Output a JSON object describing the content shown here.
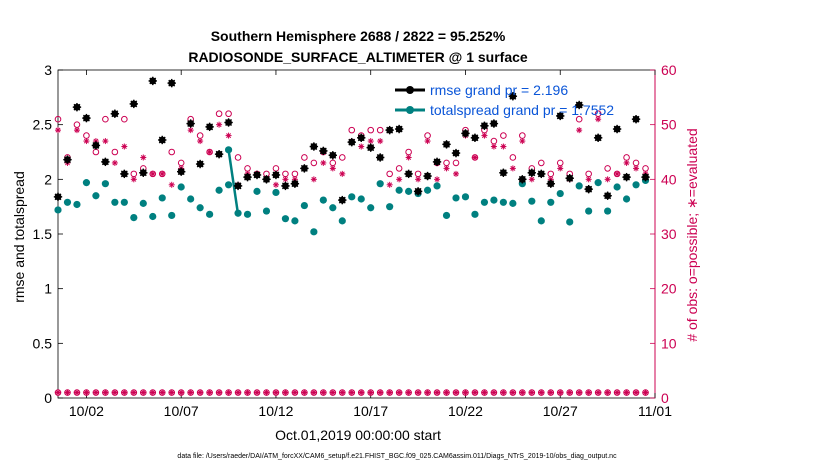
{
  "chart_data": {
    "type": "scatter",
    "title_line1": "Southern Hemisphere 2688 / 2822 = 95.252%",
    "title_line2": "RADIOSONDE_SURFACE_ALTIMETER @ 1 surface",
    "xlabel": "Oct.01,2019 00:00:00 start",
    "ylabel_left": "rmse and totalspread",
    "ylabel_right": "# of obs: o=possible; ∗=evaluated",
    "footer": "data file: /Users/raeder/DAI/ATM_forcXX/CAM6_setup/f.e21.FHIST_BGC.f09_025.CAM6assim.011/Diags_NTrS_2019-10/obs_diag_output.nc",
    "xlim": [
      0.5,
      32
    ],
    "ylim_left": [
      0,
      3
    ],
    "ylim_right": [
      0,
      60
    ],
    "x_ticks": [
      {
        "x": 2,
        "label": "10/02"
      },
      {
        "x": 7,
        "label": "10/07"
      },
      {
        "x": 12,
        "label": "10/12"
      },
      {
        "x": 17,
        "label": "10/17"
      },
      {
        "x": 22,
        "label": "10/22"
      },
      {
        "x": 27,
        "label": "10/27"
      },
      {
        "x": 32,
        "label": "11/01"
      }
    ],
    "y_ticks_left": [
      "0",
      "0.5",
      "1",
      "1.5",
      "2",
      "2.5",
      "3"
    ],
    "y_ticks_right": [
      "0",
      "10",
      "20",
      "30",
      "40",
      "50",
      "60"
    ],
    "colors": {
      "rmse": "#000000",
      "spread": "#008080",
      "counts": "#cc0052",
      "legend_text": "#0a55d8"
    },
    "legend": [
      {
        "key": "rmse",
        "label": "rmse grand pr = 2.196"
      },
      {
        "key": "spread",
        "label": "totalspread grand pr = 1.7552"
      }
    ],
    "series": [
      {
        "name": "rmse",
        "x": [
          0.5,
          1,
          1.5,
          2,
          2.5,
          3,
          3.5,
          4,
          4.5,
          5,
          5.5,
          6,
          6.5,
          7,
          7.5,
          8,
          8.5,
          9,
          9.5,
          10,
          10.5,
          11,
          11.5,
          12,
          12.5,
          13,
          13.5,
          14,
          14.5,
          15,
          15.5,
          16,
          16.5,
          17,
          17.5,
          18,
          18.5,
          19,
          19.5,
          20,
          20.5,
          21,
          21.5,
          22,
          22.5,
          23,
          23.5,
          24,
          24.5,
          25,
          25.5,
          26,
          26.5,
          27,
          27.5,
          28,
          28.5,
          29,
          29.5,
          30,
          30.5,
          31,
          31.5
        ],
        "y": [
          1.84,
          2.18,
          2.66,
          2.56,
          2.31,
          2.16,
          2.6,
          2.05,
          2.69,
          2.06,
          2.9,
          2.36,
          2.88,
          2.07,
          2.51,
          2.14,
          2.48,
          2.23,
          2.52,
          1.94,
          2.02,
          2.04,
          2.0,
          2.04,
          1.94,
          1.96,
          2.1,
          2.3,
          2.26,
          2.22,
          1.81,
          2.34,
          2.38,
          2.29,
          2.2,
          2.45,
          2.46,
          2.05,
          1.89,
          2.03,
          2.16,
          2.32,
          2.24,
          2.42,
          2.38,
          2.49,
          2.51,
          2.06,
          2.76,
          2.0,
          2.06,
          2.05,
          1.96,
          2.58,
          2.01,
          2.68,
          1.91,
          2.38,
          1.85,
          2.46,
          2.02,
          2.55,
          2.02
        ]
      },
      {
        "name": "totalspread",
        "x": [
          0.5,
          1,
          1.5,
          2,
          2.5,
          3,
          3.5,
          4,
          4.5,
          5,
          5.5,
          6,
          6.5,
          7,
          7.5,
          8,
          8.5,
          9,
          9.5,
          10,
          10.5,
          11,
          11.5,
          12,
          12.5,
          13,
          13.5,
          14,
          14.5,
          15,
          15.5,
          16,
          16.5,
          17,
          17.5,
          18,
          18.5,
          19,
          19.5,
          20,
          20.5,
          21,
          21.5,
          22,
          22.5,
          23,
          23.5,
          24,
          24.5,
          25,
          25.5,
          26,
          26.5,
          27,
          27.5,
          28,
          28.5,
          29,
          29.5,
          30,
          30.5,
          31,
          31.5
        ],
        "y": [
          1.72,
          1.79,
          1.77,
          1.97,
          1.85,
          1.96,
          1.79,
          1.79,
          1.65,
          1.78,
          1.66,
          1.83,
          1.67,
          1.93,
          1.82,
          1.74,
          1.68,
          1.9,
          1.95,
          1.69,
          1.68,
          1.89,
          1.71,
          1.88,
          1.64,
          1.62,
          1.76,
          1.52,
          1.81,
          1.74,
          1.62,
          1.84,
          1.82,
          1.74,
          1.96,
          1.75,
          1.9,
          1.89,
          1.87,
          1.9,
          1.94,
          1.67,
          1.83,
          1.84,
          1.68,
          1.79,
          1.81,
          1.79,
          1.78,
          1.96,
          1.8,
          1.62,
          1.79,
          1.87,
          1.61,
          1.94,
          1.71,
          1.97,
          1.71,
          1.93,
          1.82,
          1.95,
          1.99
        ],
        "line_segment_x": [
          9.5,
          10
        ],
        "line_segment_y": [
          2.27,
          1.68
        ]
      },
      {
        "name": "possible",
        "x": [
          0.5,
          1,
          1.5,
          2,
          2.5,
          3,
          3.5,
          4,
          4.5,
          5,
          5.5,
          6,
          6.5,
          7,
          7.5,
          8,
          8.5,
          9,
          9.5,
          10,
          10.5,
          11,
          11.5,
          12,
          12.5,
          13,
          13.5,
          14,
          14.5,
          15,
          15.5,
          16,
          16.5,
          17,
          17.5,
          18,
          18.5,
          19,
          19.5,
          20,
          20.5,
          21,
          21.5,
          22,
          22.5,
          23,
          23.5,
          24,
          24.5,
          25,
          25.5,
          26,
          26.5,
          27,
          27.5,
          28,
          28.5,
          29,
          29.5,
          30,
          30.5,
          31,
          31.5
        ],
        "y": [
          51,
          44,
          50,
          48,
          45,
          51,
          45,
          51,
          41,
          42,
          41,
          41,
          45,
          43,
          51,
          48,
          45,
          52,
          52,
          44,
          42,
          41,
          41,
          42,
          41,
          41,
          44,
          43,
          45,
          43,
          44,
          49,
          48,
          49,
          49,
          41,
          42,
          45,
          41,
          48,
          43,
          43,
          43,
          49,
          44,
          49,
          47,
          48,
          44,
          48,
          42,
          43,
          41,
          43,
          41,
          51,
          41,
          52,
          42,
          41,
          44,
          43,
          42
        ]
      },
      {
        "name": "evaluated",
        "x": [
          0.5,
          1,
          1.5,
          2,
          2.5,
          3,
          3.5,
          4,
          4.5,
          5,
          5.5,
          6,
          6.5,
          7,
          7.5,
          8,
          8.5,
          9,
          9.5,
          10,
          10.5,
          11,
          11.5,
          12,
          12.5,
          13,
          13.5,
          14,
          14.5,
          15,
          15.5,
          16,
          16.5,
          17,
          17.5,
          18,
          18.5,
          19,
          19.5,
          20,
          20.5,
          21,
          21.5,
          22,
          22.5,
          23,
          23.5,
          24,
          24.5,
          25,
          25.5,
          26,
          26.5,
          27,
          27.5,
          28,
          28.5,
          29,
          29.5,
          30,
          30.5,
          31,
          31.5
        ],
        "y": [
          49,
          43,
          49,
          47,
          47,
          47,
          43,
          46,
          40,
          44,
          41,
          41,
          39,
          42,
          49,
          47,
          45,
          50,
          48,
          39,
          41,
          41,
          40,
          39,
          40,
          40,
          42,
          40,
          43,
          42,
          41,
          47,
          46,
          47,
          47,
          39,
          40,
          44,
          40,
          47,
          40,
          42,
          41,
          48,
          44,
          48,
          46,
          46,
          42,
          47,
          40,
          41,
          40,
          42,
          40,
          49,
          40,
          51,
          40,
          41,
          43,
          42,
          41
        ]
      },
      {
        "name": "possible_level3",
        "x": [
          0.5,
          1,
          1.5,
          2,
          2.5,
          3,
          3.5,
          4,
          4.5,
          5,
          5.5,
          6,
          6.5,
          7,
          7.5,
          8,
          8.5,
          9,
          9.5,
          10,
          10.5,
          11,
          11.5,
          12,
          12.5,
          13,
          13.5,
          14,
          14.5,
          15,
          15.5,
          16,
          16.5,
          17,
          17.5,
          18,
          18.5,
          19,
          19.5,
          20,
          20.5,
          21,
          21.5,
          22,
          22.5,
          23,
          23.5,
          24,
          24.5,
          25,
          25.5,
          26,
          26.5,
          27,
          27.5,
          28,
          28.5,
          29,
          29.5,
          30,
          30.5,
          31,
          31.5
        ],
        "y": [
          1,
          1,
          1,
          1,
          1,
          1,
          1,
          1,
          1,
          1,
          1,
          1,
          1,
          1,
          1,
          1,
          1,
          1,
          1,
          1,
          1,
          1,
          1,
          1,
          1,
          1,
          1,
          1,
          1,
          1,
          1,
          1,
          1,
          1,
          1,
          1,
          1,
          1,
          1,
          1,
          1,
          1,
          1,
          1,
          1,
          1,
          1,
          1,
          1,
          1,
          1,
          1,
          1,
          1,
          1,
          1,
          1,
          1,
          1,
          1,
          1,
          1,
          1
        ]
      }
    ]
  }
}
